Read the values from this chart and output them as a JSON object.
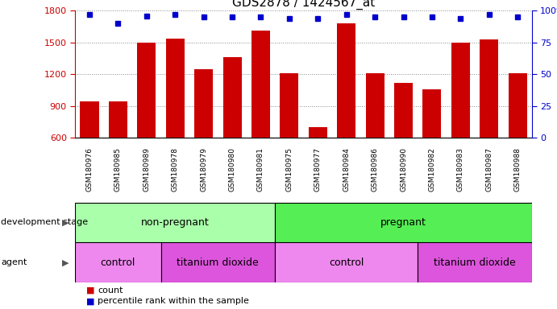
{
  "title": "GDS2878 / 1424567_at",
  "samples": [
    "GSM180976",
    "GSM180985",
    "GSM180989",
    "GSM180978",
    "GSM180979",
    "GSM180980",
    "GSM180981",
    "GSM180975",
    "GSM180977",
    "GSM180984",
    "GSM180986",
    "GSM180990",
    "GSM180982",
    "GSM180983",
    "GSM180987",
    "GSM180988"
  ],
  "counts": [
    940,
    940,
    1500,
    1540,
    1250,
    1360,
    1610,
    1210,
    700,
    1680,
    1210,
    1120,
    1060,
    1500,
    1530,
    1210
  ],
  "percentile_ranks": [
    97,
    90,
    96,
    97,
    95,
    95,
    95,
    94,
    94,
    97,
    95,
    95,
    95,
    94,
    97,
    95
  ],
  "bar_color": "#cc0000",
  "dot_color": "#0000cc",
  "ylim_left": [
    600,
    1800
  ],
  "ylim_right": [
    0,
    100
  ],
  "yticks_left": [
    600,
    900,
    1200,
    1500,
    1800
  ],
  "yticks_right": [
    0,
    25,
    50,
    75,
    100
  ],
  "development_stage_groups": [
    {
      "label": "non-pregnant",
      "start": 0,
      "end": 7,
      "color": "#aaffaa"
    },
    {
      "label": "pregnant",
      "start": 7,
      "end": 16,
      "color": "#55ee55"
    }
  ],
  "agent_groups": [
    {
      "label": "control",
      "start": 0,
      "end": 3,
      "color": "#ee88ee"
    },
    {
      "label": "titanium dioxide",
      "start": 3,
      "end": 7,
      "color": "#dd55dd"
    },
    {
      "label": "control",
      "start": 7,
      "end": 12,
      "color": "#ee88ee"
    },
    {
      "label": "titanium dioxide",
      "start": 12,
      "end": 16,
      "color": "#dd55dd"
    }
  ],
  "background_color": "#ffffff",
  "grid_color": "#888888",
  "tick_color_left": "#cc0000",
  "tick_color_right": "#0000cc",
  "xtick_bg_color": "#dddddd",
  "label_fontsize": 8,
  "title_fontsize": 11
}
